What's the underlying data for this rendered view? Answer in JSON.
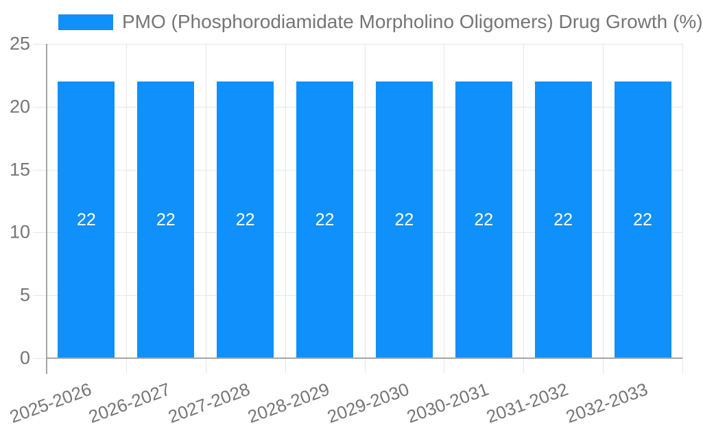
{
  "chart_data": {
    "type": "bar",
    "title": "PMO (Phosphorodiamidate Morpholino Oligomers) Drug Growth (%)",
    "legend_position": "top",
    "categories": [
      "2025-2026",
      "2026-2027",
      "2027-2028",
      "2028-2029",
      "2029-2030",
      "2030-2031",
      "2031-2032",
      "2032-2033"
    ],
    "values": [
      22,
      22,
      22,
      22,
      22,
      22,
      22,
      22
    ],
    "bar_labels": [
      "22",
      "22",
      "22",
      "22",
      "22",
      "22",
      "22",
      "22"
    ],
    "xlabel": "",
    "ylabel": "",
    "ylim": [
      0,
      25
    ],
    "yticks": [
      0,
      5,
      10,
      15,
      20,
      25
    ],
    "grid": true,
    "colors": {
      "bar": "#0f90fa",
      "bar_label": "#ffffff",
      "text": "#757575",
      "grid": "#e6e6e6",
      "axis": "#a4a4a4",
      "background": "#ffffff"
    }
  }
}
